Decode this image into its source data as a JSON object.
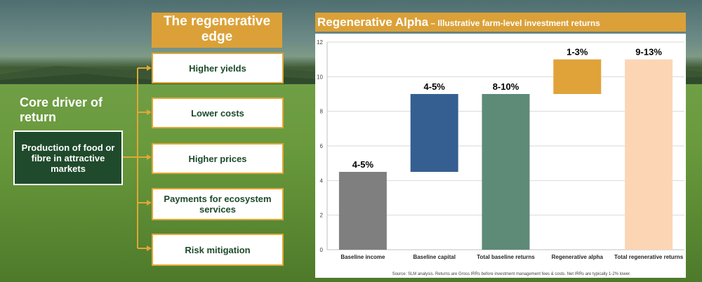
{
  "left_panel": {
    "edge_title": "The regenerative edge",
    "core_title": "Core driver of return",
    "core_box": "Production of food or fibre in attractive markets",
    "edge_items": [
      "Higher yields",
      "Lower costs",
      "Higher prices",
      "Payments for ecosystem services",
      "Risk mitigation"
    ]
  },
  "chart_header": {
    "main": "Regenerative Alpha",
    "sub": " – Illustrative farm-level investment returns"
  },
  "chart_data": {
    "type": "bar",
    "subtype": "waterfall",
    "title": "Regenerative Alpha – Illustrative farm-level investment returns",
    "categories": [
      "Baseline income",
      "Baseline capital",
      "Total baseline returns",
      "Regenerative alpha",
      "Total regenerative returns"
    ],
    "ranges": [
      [
        0,
        4.5
      ],
      [
        4.5,
        9
      ],
      [
        0,
        9
      ],
      [
        9,
        11
      ],
      [
        0,
        11
      ]
    ],
    "data_labels": [
      "4-5%",
      "4-5%",
      "8-10%",
      "1-3%",
      "9-13%"
    ],
    "colors": [
      "#7f7f7f",
      "#365f91",
      "#5e8a78",
      "#e0a33a",
      "#fcd5b5"
    ],
    "ylim": [
      0,
      12
    ],
    "yticks": [
      0,
      2,
      4,
      6,
      8,
      10,
      12
    ],
    "grid": true,
    "xlabel": "",
    "ylabel": "",
    "source_note": "Source: SLM analysis. Returns are Gross IRRs before investment management fees & costs. Net IRRs are typically 1-2% lower."
  }
}
